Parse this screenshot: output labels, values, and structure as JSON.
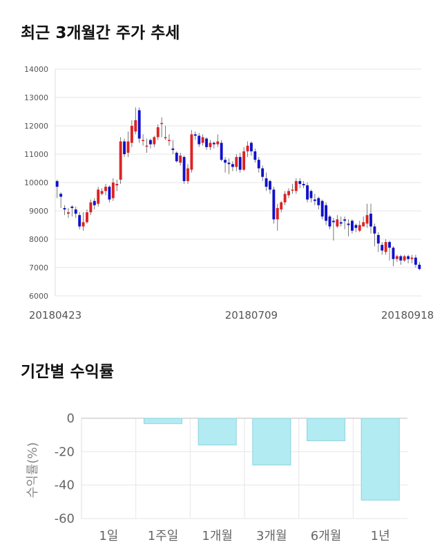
{
  "titles": {
    "price_trend": "최근 3개월간 주가 추세",
    "returns": "기간별 수익률"
  },
  "colors": {
    "up": "#dd2222",
    "down": "#1111cc",
    "bar_fill": "#b2ebf2",
    "bar_stroke": "#8fd3de",
    "grid": "#e6e6e6"
  },
  "chart_data": [
    {
      "type": "candlestick",
      "title": "최근 3개월간 주가 추세",
      "ylim": [
        6000,
        14000
      ],
      "y_ticks": [
        "14000",
        "13000",
        "12000",
        "11000",
        "10000",
        "9000",
        "8000",
        "7000",
        "6000"
      ],
      "x_tick_labels": [
        "20180423",
        "20180709",
        "20180918"
      ],
      "x_tick_index": [
        0,
        52,
        104
      ],
      "grid": true,
      "close_values": [
        9850,
        9500,
        9050,
        8950,
        9100,
        8900,
        8450,
        8600,
        8950,
        9300,
        9200,
        9750,
        9700,
        9850,
        9400,
        10000,
        9950,
        11450,
        11000,
        11450,
        12000,
        12200,
        11550,
        11500,
        11300,
        11350,
        11600,
        11950,
        12100,
        11600,
        11500,
        11150,
        10750,
        10950,
        10050,
        10500,
        11700,
        11650,
        11350,
        11600,
        11250,
        11400,
        11350,
        11450,
        10800,
        10700,
        10650,
        10550,
        10900,
        10450,
        11100,
        11300,
        11100,
        10800,
        10500,
        10200,
        9850,
        9750,
        8700,
        9100,
        9300,
        9600,
        9700,
        9750,
        10050,
        9950,
        9900,
        9400,
        9450,
        9350,
        9200,
        8800,
        8650,
        8450,
        8600,
        8700,
        8550,
        8650,
        8500,
        8300,
        8400,
        8500,
        8600,
        8850,
        8450,
        8200,
        7850,
        7600,
        7900,
        7700,
        7300,
        7400,
        7250,
        7400,
        7300,
        7350,
        7100,
        6950
      ],
      "open_values": [
        10050,
        9600,
        9100,
        8900,
        9150,
        9050,
        8850,
        8450,
        8600,
        8950,
        9350,
        9250,
        9600,
        9700,
        9850,
        9450,
        9900,
        10100,
        11450,
        11050,
        11400,
        11800,
        12550,
        11500,
        11300,
        11500,
        11350,
        11600,
        12100,
        11600,
        11500,
        11200,
        11050,
        10700,
        10900,
        10050,
        10450,
        11700,
        11650,
        11400,
        11550,
        11250,
        11400,
        11350,
        11400,
        10800,
        10700,
        10650,
        10550,
        10900,
        10450,
        11100,
        11400,
        11100,
        10800,
        10500,
        10150,
        10050,
        9750,
        8700,
        9050,
        9300,
        9550,
        9750,
        9700,
        10050,
        9950,
        9900,
        9700,
        9400,
        9450,
        9350,
        9200,
        8800,
        8650,
        8450,
        8600,
        8700,
        8550,
        8650,
        8500,
        8300,
        8450,
        8550,
        8900,
        8450,
        8150,
        7800,
        7550,
        7900,
        7700,
        7300,
        7400,
        7250,
        7400,
        7300,
        7350,
        7100
      ],
      "high_values": [
        10100,
        9650,
        9200,
        9100,
        9200,
        9150,
        8950,
        8950,
        9050,
        9400,
        9450,
        9850,
        9800,
        9950,
        9900,
        10150,
        10100,
        11600,
        11550,
        11800,
        12200,
        12650,
        12650,
        11700,
        11550,
        11550,
        11650,
        12050,
        12300,
        12000,
        11700,
        11500,
        11100,
        11050,
        10950,
        10650,
        11850,
        11800,
        11750,
        11700,
        11600,
        11500,
        11450,
        11700,
        11500,
        10900,
        10850,
        10750,
        11000,
        11050,
        11250,
        11450,
        11450,
        11200,
        10900,
        10600,
        10350,
        10100,
        9850,
        9250,
        9350,
        9700,
        9800,
        9950,
        10150,
        10150,
        10050,
        10000,
        9750,
        9600,
        9500,
        9400,
        9300,
        8850,
        8750,
        8850,
        8800,
        8800,
        8700,
        8700,
        8550,
        8650,
        8800,
        9250,
        9250,
        8550,
        8250,
        7900,
        8000,
        7950,
        7750,
        7450,
        7450,
        7450,
        7450,
        7450,
        7450,
        7200
      ],
      "low_values": [
        9450,
        9100,
        8850,
        8750,
        8800,
        8750,
        8350,
        8300,
        8550,
        8850,
        9050,
        9150,
        9550,
        9550,
        9300,
        9350,
        9700,
        9950,
        10900,
        10900,
        11250,
        11700,
        11400,
        11300,
        11050,
        11200,
        11250,
        11500,
        11600,
        11500,
        11300,
        11000,
        10700,
        10600,
        9950,
        9950,
        10350,
        11500,
        11250,
        11300,
        11150,
        11150,
        11200,
        11250,
        10750,
        10350,
        10300,
        10400,
        10400,
        10350,
        10400,
        10900,
        10950,
        10700,
        10350,
        10050,
        9700,
        9600,
        8550,
        8300,
        8950,
        9200,
        9450,
        9600,
        9600,
        9800,
        9800,
        9300,
        9300,
        9200,
        9050,
        8700,
        8500,
        8350,
        7950,
        8400,
        8450,
        8350,
        8100,
        8200,
        8250,
        8250,
        8450,
        8400,
        8200,
        7750,
        7550,
        7450,
        7450,
        7250,
        7050,
        7200,
        7100,
        7200,
        7150,
        7150,
        7000,
        6900
      ]
    },
    {
      "type": "bar",
      "title": "기간별 수익률",
      "ylabel": "수익률(%)",
      "ylim": [
        -60,
        0
      ],
      "y_ticks": [
        "0",
        "-20",
        "-40",
        "-60"
      ],
      "categories": [
        "1일",
        "1주일",
        "1개월",
        "3개월",
        "6개월",
        "1년"
      ],
      "values": [
        0,
        -3.2,
        -16,
        -28,
        -13.5,
        -49
      ],
      "grid": true
    }
  ]
}
